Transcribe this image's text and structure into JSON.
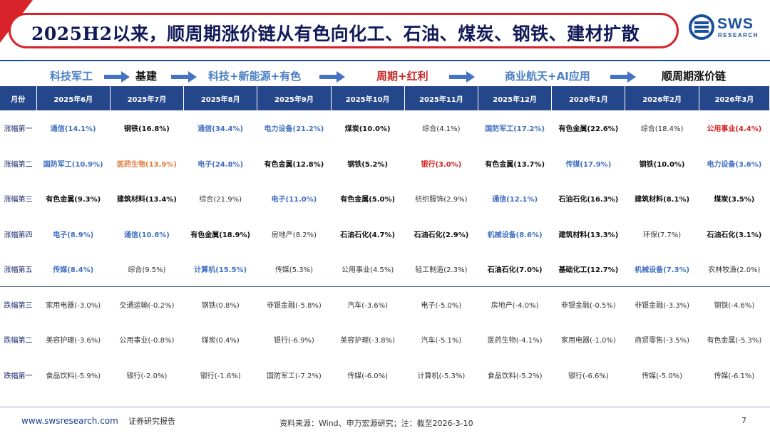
{
  "title": "2025H2以来，顺周期涨价链从有色向化工、石油、煤炭、钢铁、建材扩散",
  "logo": {
    "name": "SWS",
    "sub": "RESEARCH",
    "color": "#1a4f9c"
  },
  "phases": [
    {
      "label": "科技军工",
      "color": "blue"
    },
    {
      "label": "基建",
      "color": "black"
    },
    {
      "label": "科技+新能源+有色",
      "color": "blue"
    },
    {
      "label": "周期+红利",
      "color": "red"
    },
    {
      "label": "商业航天+AI应用",
      "color": "blue"
    },
    {
      "label": "顺周期涨价链",
      "color": "black"
    }
  ],
  "table": {
    "header_label": "月份",
    "months": [
      "2025年6月",
      "2025年7月",
      "2025年8月",
      "2025年9月",
      "2025年10月",
      "2025年11月",
      "2025年12月",
      "2026年1月",
      "2026年2月",
      "2026年3月"
    ],
    "rows": [
      {
        "label": "涨幅第一",
        "group": "up",
        "cells": [
          {
            "t": "通信(14.1%)",
            "c": "blue"
          },
          {
            "t": "钢铁(16.8%)",
            "c": "black"
          },
          {
            "t": "通信(34.4%)",
            "c": "blue"
          },
          {
            "t": "电力设备(21.2%)",
            "c": "blue"
          },
          {
            "t": "煤炭(10.0%)",
            "c": "black"
          },
          {
            "t": "综合(4.1%)",
            "c": "normal"
          },
          {
            "t": "国防军工(17.2%)",
            "c": "blue"
          },
          {
            "t": "有色金属(22.6%)",
            "c": "black"
          },
          {
            "t": "综合(18.4%)",
            "c": "normal"
          },
          {
            "t": "公用事业(4.4%)",
            "c": "red"
          }
        ]
      },
      {
        "label": "涨幅第二",
        "group": "up",
        "cells": [
          {
            "t": "国防军工(10.9%)",
            "c": "blue"
          },
          {
            "t": "医药生物(13.9%)",
            "c": "orange"
          },
          {
            "t": "电子(24.8%)",
            "c": "blue"
          },
          {
            "t": "有色金属(12.8%)",
            "c": "black"
          },
          {
            "t": "钢铁(5.2%)",
            "c": "black"
          },
          {
            "t": "银行(3.0%)",
            "c": "red"
          },
          {
            "t": "有色金属(13.7%)",
            "c": "black"
          },
          {
            "t": "传媒(17.9%)",
            "c": "blue"
          },
          {
            "t": "钢铁(10.0%)",
            "c": "black"
          },
          {
            "t": "电力设备(3.6%)",
            "c": "blue"
          }
        ]
      },
      {
        "label": "涨幅第三",
        "group": "up",
        "cells": [
          {
            "t": "有色金属(9.3%)",
            "c": "black"
          },
          {
            "t": "建筑材料(13.4%)",
            "c": "black"
          },
          {
            "t": "综合(21.9%)",
            "c": "normal"
          },
          {
            "t": "电子(11.0%)",
            "c": "blue"
          },
          {
            "t": "有色金属(5.0%)",
            "c": "black"
          },
          {
            "t": "纺织服饰(2.9%)",
            "c": "normal"
          },
          {
            "t": "通信(12.1%)",
            "c": "blue"
          },
          {
            "t": "石油石化(16.3%)",
            "c": "black"
          },
          {
            "t": "建筑材料(8.1%)",
            "c": "black"
          },
          {
            "t": "煤炭(3.5%)",
            "c": "black"
          }
        ]
      },
      {
        "label": "涨幅第四",
        "group": "up",
        "cells": [
          {
            "t": "电子(8.9%)",
            "c": "blue"
          },
          {
            "t": "通信(10.8%)",
            "c": "blue"
          },
          {
            "t": "有色金属(18.9%)",
            "c": "black"
          },
          {
            "t": "房地产(8.2%)",
            "c": "normal"
          },
          {
            "t": "石油石化(4.7%)",
            "c": "black"
          },
          {
            "t": "石油石化(2.9%)",
            "c": "black"
          },
          {
            "t": "机械设备(8.6%)",
            "c": "blue"
          },
          {
            "t": "建筑材料(13.3%)",
            "c": "black"
          },
          {
            "t": "环保(7.7%)",
            "c": "normal"
          },
          {
            "t": "石油石化(3.1%)",
            "c": "black"
          }
        ]
      },
      {
        "label": "涨幅第五",
        "group": "up",
        "cells": [
          {
            "t": "传媒(8.4%)",
            "c": "blue"
          },
          {
            "t": "综合(9.5%)",
            "c": "normal"
          },
          {
            "t": "计算机(15.5%)",
            "c": "blue"
          },
          {
            "t": "传媒(5.3%)",
            "c": "normal"
          },
          {
            "t": "公用事业(4.5%)",
            "c": "normal"
          },
          {
            "t": "轻工制造(2.3%)",
            "c": "normal"
          },
          {
            "t": "石油石化(7.0%)",
            "c": "black"
          },
          {
            "t": "基础化工(12.7%)",
            "c": "black"
          },
          {
            "t": "机械设备(7.3%)",
            "c": "blue"
          },
          {
            "t": "农林牧渔(2.0%)",
            "c": "normal"
          }
        ]
      },
      {
        "label": "跌幅第三",
        "group": "down",
        "cells": [
          {
            "t": "家用电器(-3.0%)",
            "c": "normal"
          },
          {
            "t": "交通运输(-0.2%)",
            "c": "normal"
          },
          {
            "t": "钢铁(0.8%)",
            "c": "normal"
          },
          {
            "t": "非银金融(-5.8%)",
            "c": "normal"
          },
          {
            "t": "汽车(-3.6%)",
            "c": "normal"
          },
          {
            "t": "电子(-5.0%)",
            "c": "normal"
          },
          {
            "t": "房地产(-4.0%)",
            "c": "normal"
          },
          {
            "t": "非银金融(-0.5%)",
            "c": "normal"
          },
          {
            "t": "非银金融(-3.3%)",
            "c": "normal"
          },
          {
            "t": "钢铁(-4.6%)",
            "c": "normal"
          }
        ]
      },
      {
        "label": "跌幅第二",
        "group": "down",
        "cells": [
          {
            "t": "美容护理(-3.6%)",
            "c": "normal"
          },
          {
            "t": "公用事业(-0.8%)",
            "c": "normal"
          },
          {
            "t": "煤炭(0.4%)",
            "c": "normal"
          },
          {
            "t": "银行(-6.9%)",
            "c": "normal"
          },
          {
            "t": "美容护理(-3.8%)",
            "c": "normal"
          },
          {
            "t": "汽车(-5.1%)",
            "c": "normal"
          },
          {
            "t": "医药生物(-4.1%)",
            "c": "normal"
          },
          {
            "t": "家用电器(-1.0%)",
            "c": "normal"
          },
          {
            "t": "商贸零售(-3.5%)",
            "c": "normal"
          },
          {
            "t": "有色金属(-5.3%)",
            "c": "normal"
          }
        ]
      },
      {
        "label": "跌幅第一",
        "group": "down",
        "cells": [
          {
            "t": "食品饮料(-5.9%)",
            "c": "normal"
          },
          {
            "t": "银行(-2.0%)",
            "c": "normal"
          },
          {
            "t": "银行(-1.6%)",
            "c": "normal"
          },
          {
            "t": "国防军工(-7.2%)",
            "c": "normal"
          },
          {
            "t": "传媒(-6.0%)",
            "c": "normal"
          },
          {
            "t": "计算机(-5.3%)",
            "c": "normal"
          },
          {
            "t": "食品饮料(-5.2%)",
            "c": "normal"
          },
          {
            "t": "银行(-6.6%)",
            "c": "normal"
          },
          {
            "t": "传媒(-5.0%)",
            "c": "normal"
          },
          {
            "t": "传媒(-6.1%)",
            "c": "normal"
          }
        ]
      }
    ]
  },
  "footer": {
    "url": "www.swsresearch.com",
    "report": "证券研究报告",
    "source": "资料来源：Wind、申万宏源研究；注：截至2026-3-10",
    "page": "7"
  }
}
